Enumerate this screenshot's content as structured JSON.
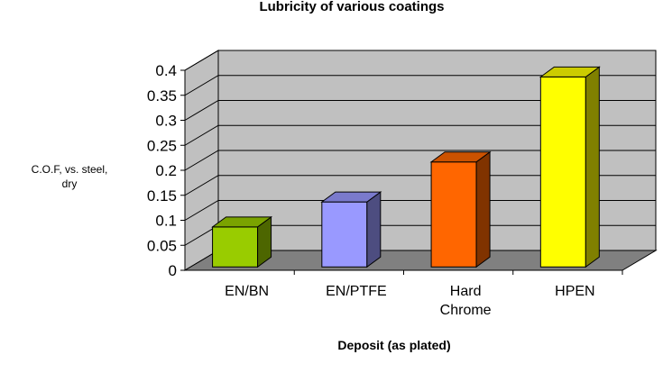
{
  "chart_data": {
    "type": "bar",
    "title": "Lubricity of various coatings",
    "xlabel": "Deposit (as plated)",
    "ylabel": [
      "C.O.F, vs. steel,",
      "dry"
    ],
    "categories": [
      "EN/BN",
      "EN/PTFE",
      "Hard Chrome",
      "HPEN"
    ],
    "category_lines": [
      [
        "EN/BN"
      ],
      [
        "EN/PTFE"
      ],
      [
        "Hard",
        "Chrome"
      ],
      [
        "HPEN"
      ]
    ],
    "values": [
      0.08,
      0.13,
      0.21,
      0.38
    ],
    "ylim": [
      0,
      0.4
    ],
    "yticks": [
      "0",
      "0.05",
      "0.1",
      "0.15",
      "0.2",
      "0.25",
      "0.3",
      "0.35",
      "0.4"
    ],
    "colors": [
      "#99CC00",
      "#9999FF",
      "#FF6600",
      "#FFFF00"
    ],
    "grid": true,
    "style": "3d-column",
    "wall_color": "#C0C0C0",
    "floor_color": "#808080"
  }
}
